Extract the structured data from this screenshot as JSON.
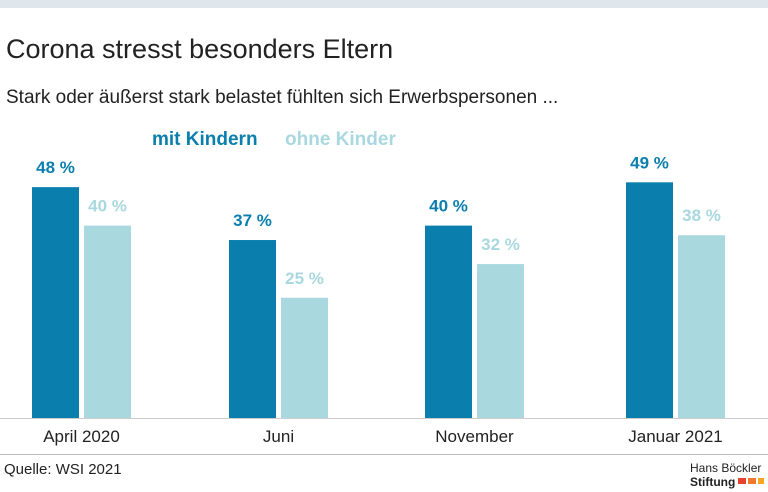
{
  "chart_data": {
    "type": "bar",
    "title": "Corona stresst besonders Eltern",
    "subtitle": "Stark oder äußerst stark belastet fühlten sich Erwerbspersonen ...",
    "categories": [
      "April 2020",
      "Juni",
      "November",
      "Januar 2021"
    ],
    "series": [
      {
        "name": "mit Kindern",
        "color": "#0a7fae",
        "values": [
          48,
          37,
          40,
          49
        ],
        "value_labels": [
          "48 %",
          "37 %",
          "40 %",
          "49 %"
        ]
      },
      {
        "name": "ohne Kinder",
        "color": "#a9d8df",
        "values": [
          40,
          25,
          32,
          38
        ],
        "value_labels": [
          "40 %",
          "25 %",
          "32 %",
          "38 %"
        ]
      }
    ],
    "source": "Quelle: WSI 2021",
    "logo": [
      "Hans Böckler",
      "Stiftung"
    ]
  }
}
